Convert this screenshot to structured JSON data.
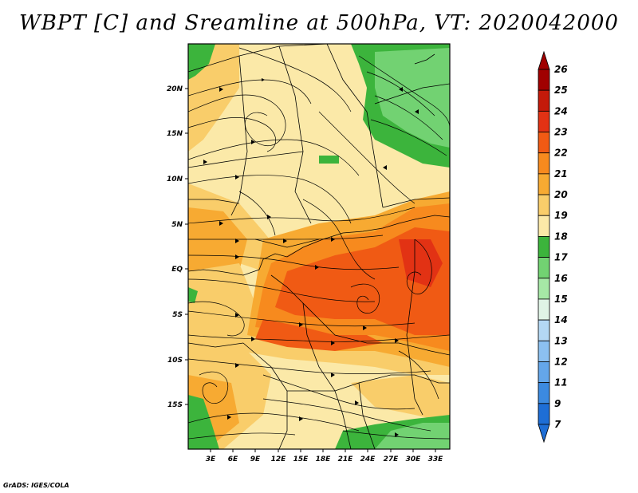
{
  "title": "WBPT [C] and Sreamline at 500hPa, VT: 2020042000",
  "credit": "GrADS: IGES/COLA",
  "axes": {
    "y_ticks": [
      "20N",
      "15N",
      "10N",
      "5N",
      "EQ",
      "5S",
      "10S",
      "15S"
    ],
    "x_ticks": [
      "3E",
      "6E",
      "9E",
      "12E",
      "15E",
      "18E",
      "21E",
      "24E",
      "27E",
      "30E",
      "33E"
    ]
  },
  "colorbar": {
    "labels": [
      "26",
      "25",
      "24",
      "23",
      "22",
      "21",
      "20",
      "19",
      "18",
      "17",
      "16",
      "15",
      "14",
      "13",
      "12",
      "11",
      "9",
      "7"
    ],
    "colors": [
      "#a00000",
      "#c41a0a",
      "#e23214",
      "#f05a14",
      "#f78a1e",
      "#f7aa32",
      "#f9cd6a",
      "#fbe9a8",
      "#3cb43c",
      "#72d272",
      "#a6e8a6",
      "#e0f4e6",
      "#b4d8f4",
      "#8cc0f0",
      "#64a6ea",
      "#3c8ae0",
      "#1e6ed6"
    ]
  }
}
